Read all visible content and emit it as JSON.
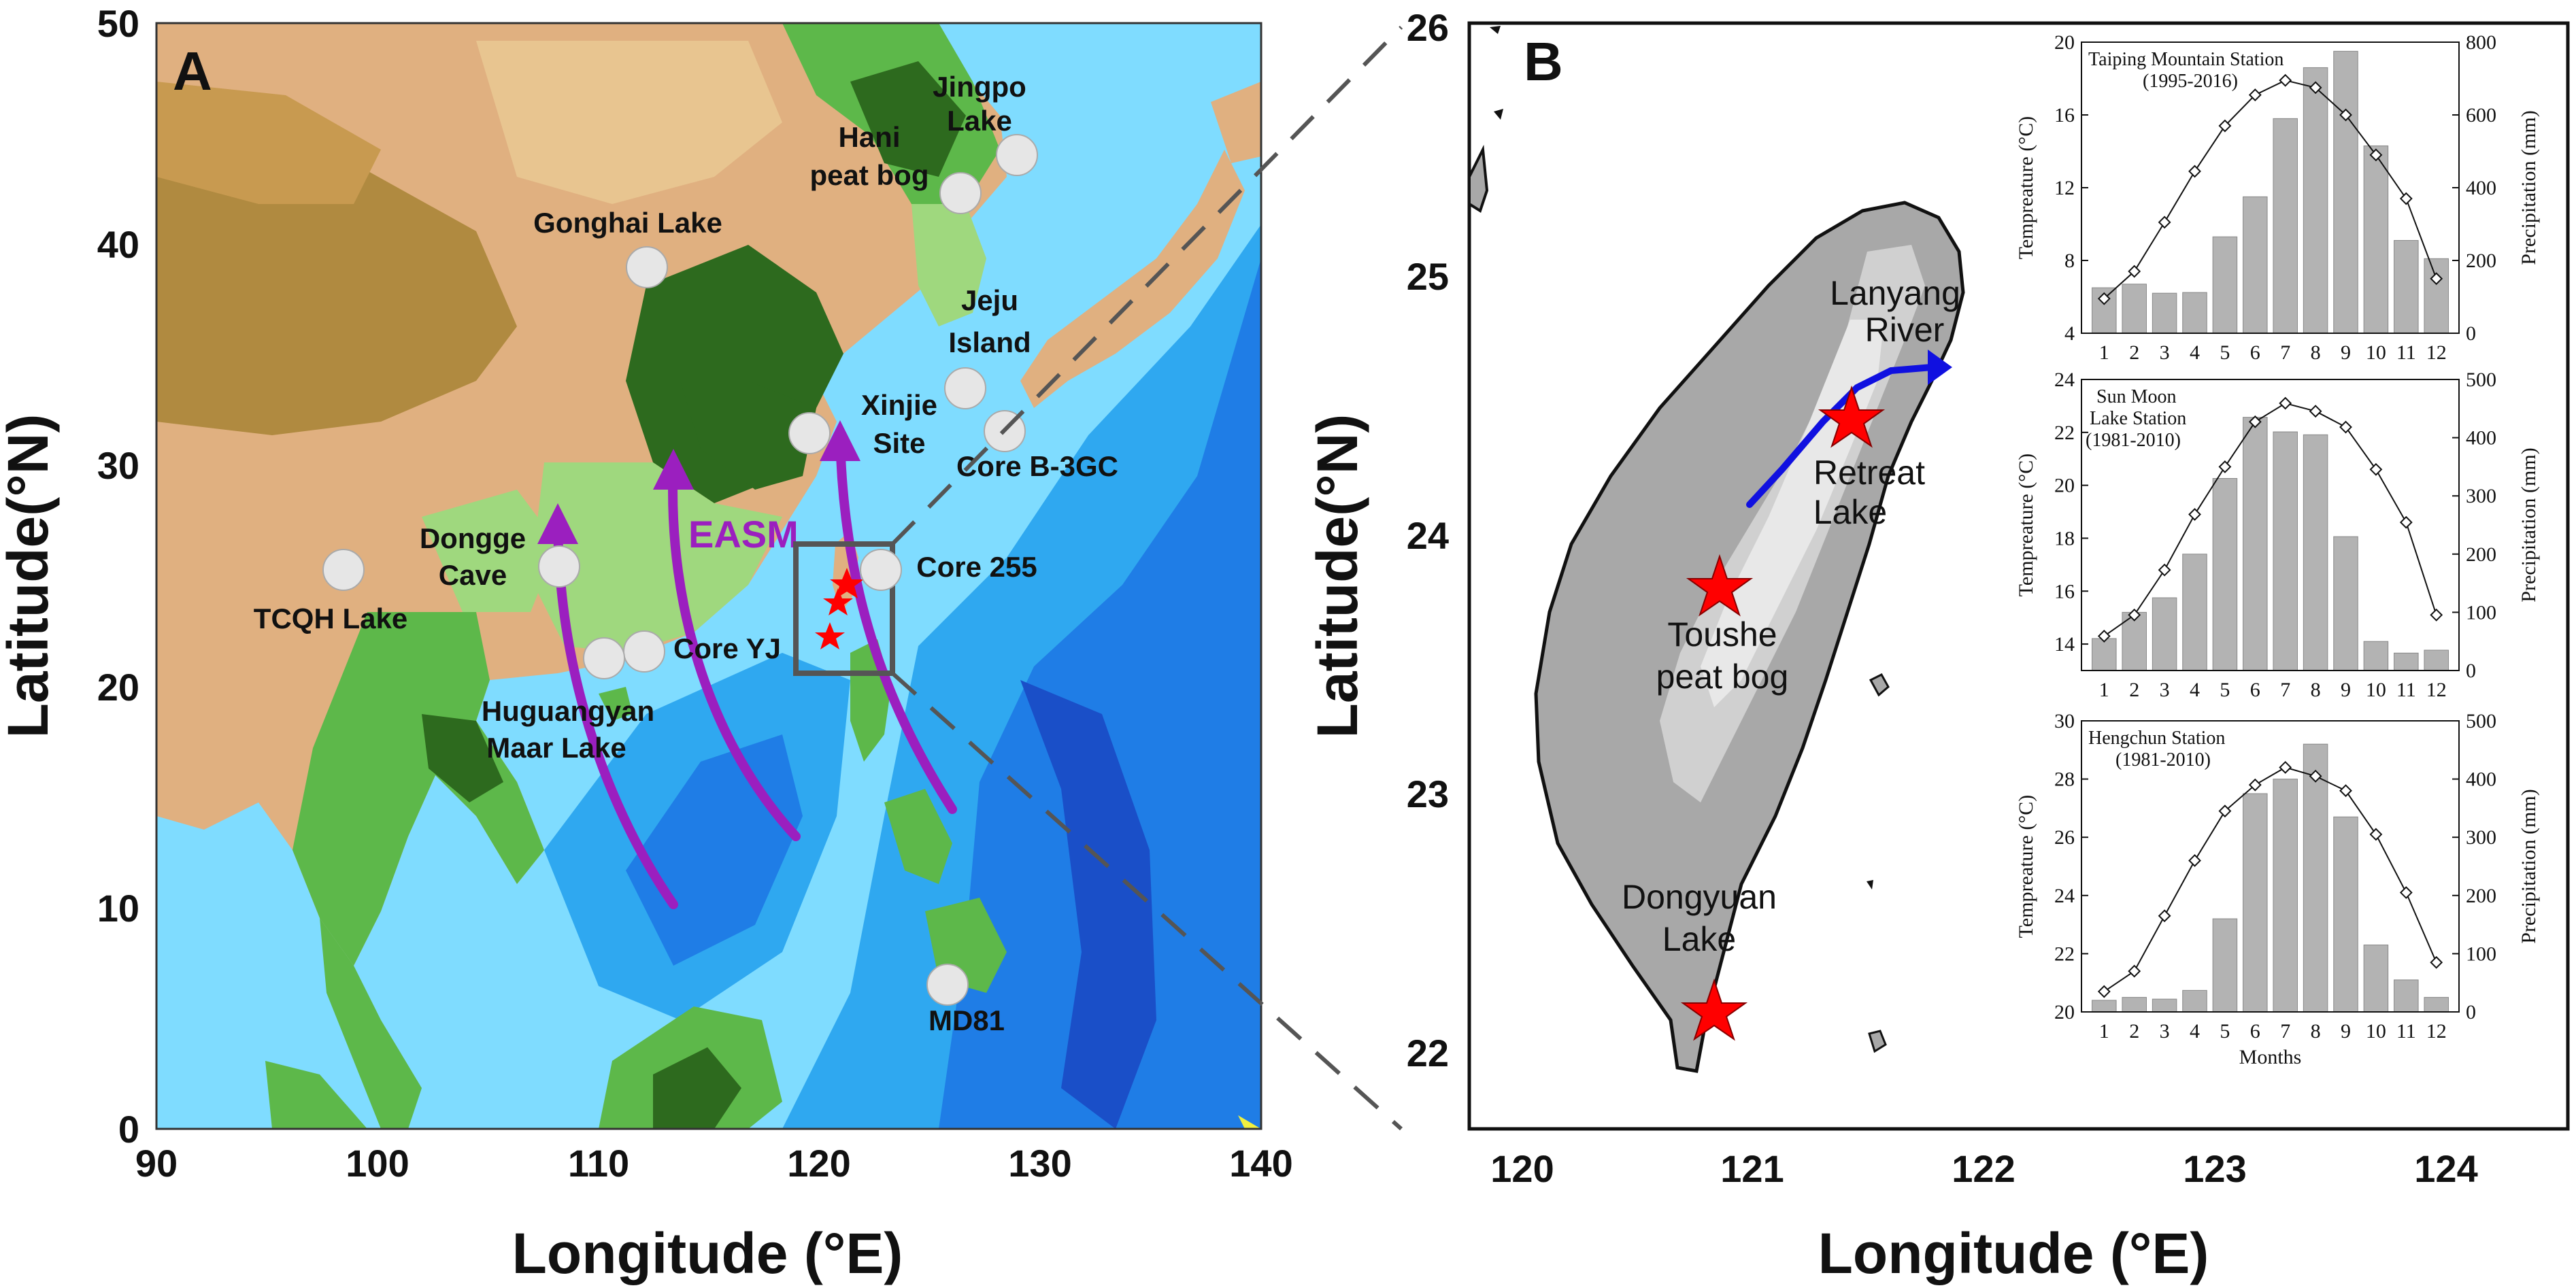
{
  "panel_a": {
    "label": "A",
    "x_title": "Longitude (°E)",
    "y_title": "Latitude(°N)",
    "x_ticks": [
      "90",
      "100",
      "110",
      "120",
      "130",
      "140"
    ],
    "y_ticks": [
      "0",
      "10",
      "20",
      "30",
      "40",
      "50"
    ],
    "monsoon_label": "EASM",
    "sites": [
      {
        "name": "Jingpo",
        "name2": "Lake"
      },
      {
        "name": "Hani",
        "name2": "peat bog"
      },
      {
        "name": "Gonghai Lake"
      },
      {
        "name": "Jeju",
        "name2": "Island"
      },
      {
        "name": "Xinjie",
        "name2": "Site"
      },
      {
        "name": "Core B-3GC"
      },
      {
        "name": "Dongge",
        "name2": "Cave"
      },
      {
        "name": "Core 255"
      },
      {
        "name": "TCQH Lake"
      },
      {
        "name": "Core YJ"
      },
      {
        "name": "Huguangyan",
        "name2": "Maar Lake"
      },
      {
        "name": "MD81"
      }
    ]
  },
  "panel_b": {
    "label": "B",
    "x_title": "Longitude (°E)",
    "y_title": "Latitude(°N)",
    "x_ticks": [
      "120",
      "121",
      "122",
      "123",
      "124"
    ],
    "y_ticks": [
      "22",
      "23",
      "24",
      "25",
      "26"
    ],
    "sites": [
      {
        "name": "Lanyang",
        "name2": "River"
      },
      {
        "name": "Retreat",
        "name2": "Lake"
      },
      {
        "name": "Toushe",
        "name2": "peat bog"
      },
      {
        "name": "Dongyuan",
        "name2": "Lake"
      }
    ]
  },
  "chart_data": [
    {
      "type": "bar+line",
      "title": "Taiping Mountain Station",
      "subtitle": "(1995-2016)",
      "ylabel": "Tempreature (°C)",
      "y2label": "Precipitation (mm)",
      "categories": [
        "1",
        "2",
        "3",
        "4",
        "5",
        "6",
        "7",
        "8",
        "9",
        "10",
        "11",
        "12"
      ],
      "temp_ticks": [
        "4",
        "8",
        "12",
        "16",
        "20"
      ],
      "precip_ticks": [
        "0",
        "200",
        "400",
        "600",
        "800"
      ],
      "temp_range": [
        4,
        20
      ],
      "precip_range": [
        0,
        800
      ],
      "precipitation": [
        125,
        135,
        110,
        112,
        265,
        375,
        590,
        730,
        775,
        515,
        255,
        205
      ],
      "temperature": [
        5.9,
        7.4,
        10.1,
        12.9,
        15.4,
        17.1,
        17.9,
        17.5,
        16.0,
        13.8,
        11.4,
        7.0
      ]
    },
    {
      "type": "bar+line",
      "title": "Sun Moon",
      "subtitle": "Lake Station",
      "subtitle2": "(1981-2010)",
      "ylabel": "Tempreature (°C)",
      "y2label": "Precipitation (mm)",
      "categories": [
        "1",
        "2",
        "3",
        "4",
        "5",
        "6",
        "7",
        "8",
        "9",
        "10",
        "11",
        "12"
      ],
      "temp_ticks": [
        "14",
        "16",
        "18",
        "20",
        "22",
        "24"
      ],
      "precip_ticks": [
        "0",
        "100",
        "200",
        "300",
        "400",
        "500"
      ],
      "temp_range": [
        13,
        24
      ],
      "precip_range": [
        0,
        500
      ],
      "precipitation": [
        55,
        100,
        125,
        200,
        330,
        435,
        410,
        405,
        230,
        50,
        30,
        35
      ],
      "temperature": [
        14.3,
        15.1,
        16.8,
        18.9,
        20.7,
        22.4,
        23.1,
        22.8,
        22.2,
        20.6,
        18.6,
        15.1
      ]
    },
    {
      "type": "bar+line",
      "title": "Hengchun Station",
      "subtitle": "(1981-2010)",
      "xlabel": "Months",
      "ylabel": "Tempreature (°C)",
      "y2label": "Precipitation (mm)",
      "categories": [
        "1",
        "2",
        "3",
        "4",
        "5",
        "6",
        "7",
        "8",
        "9",
        "10",
        "11",
        "12"
      ],
      "temp_ticks": [
        "20",
        "22",
        "24",
        "26",
        "28",
        "30"
      ],
      "precip_ticks": [
        "0",
        "100",
        "200",
        "300",
        "400",
        "500"
      ],
      "temp_range": [
        20,
        30
      ],
      "precip_range": [
        0,
        500
      ],
      "precipitation": [
        20,
        25,
        22,
        37,
        160,
        375,
        400,
        460,
        335,
        115,
        55,
        25
      ],
      "temperature": [
        20.7,
        21.4,
        23.3,
        25.2,
        26.9,
        27.8,
        28.4,
        28.1,
        27.6,
        26.1,
        24.1,
        21.7
      ]
    }
  ],
  "colors": {
    "ocean_light": "#7fdcff",
    "ocean_mid": "#2fa8f0",
    "ocean_deep": "#1a60d8",
    "lowland": "#2d6a1e",
    "green": "#5db84a",
    "lightgreen": "#9fd87e",
    "tan": "#e0b080",
    "brown": "#b08a40",
    "taiwan_low": "#a8a8a8",
    "taiwan_mid": "#d0d0d0",
    "taiwan_high": "#e8e8e8",
    "arrow": "#9b1fbf",
    "river": "#1010e0",
    "star": "#ff0000",
    "bar": "#b3b3b3"
  }
}
